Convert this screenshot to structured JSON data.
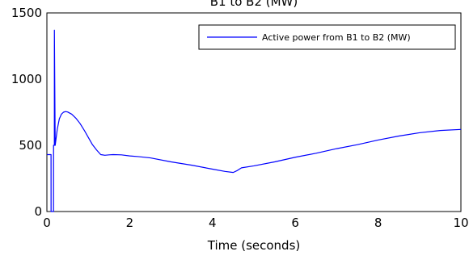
{
  "chart_data": {
    "type": "line",
    "title": "B1 to B2 (MW)",
    "xlabel": "Time (seconds)",
    "ylabel": "",
    "xlim": [
      0,
      10
    ],
    "ylim": [
      0,
      1500
    ],
    "xticks": [
      0,
      2,
      4,
      6,
      8,
      10
    ],
    "xtick_labels": [
      "0",
      "2",
      "4",
      "6",
      "8",
      "10"
    ],
    "yticks": [
      0,
      500,
      1000,
      1500
    ],
    "ytick_labels": [
      "0",
      "500",
      "1000",
      "1500"
    ],
    "grid": false,
    "legend_position": "top-right",
    "series": [
      {
        "name": "Active power from B1 to B2 (MW)",
        "color": "#0000ff",
        "x": [
          0,
          0.04,
          0.1,
          0.101,
          0.16,
          0.161,
          0.18,
          0.181,
          0.2,
          0.25,
          0.3,
          0.35,
          0.4,
          0.45,
          0.5,
          0.6,
          0.7,
          0.8,
          0.9,
          1.0,
          1.1,
          1.2,
          1.3,
          1.4,
          1.5,
          1.6,
          1.8,
          2.0,
          2.2,
          2.5,
          3.0,
          3.5,
          4.0,
          4.3,
          4.5,
          4.6,
          4.7,
          5.0,
          5.5,
          6.0,
          6.5,
          7.0,
          7.5,
          8.0,
          8.5,
          9.0,
          9.5,
          10.0
        ],
        "y": [
          430,
          430,
          430,
          0,
          0,
          500,
          500,
          1370,
          500,
          620,
          700,
          735,
          750,
          755,
          752,
          735,
          705,
          665,
          615,
          560,
          505,
          465,
          430,
          425,
          428,
          430,
          428,
          420,
          415,
          405,
          375,
          350,
          320,
          303,
          295,
          310,
          330,
          345,
          375,
          410,
          440,
          475,
          505,
          540,
          570,
          595,
          612,
          620
        ]
      }
    ]
  }
}
